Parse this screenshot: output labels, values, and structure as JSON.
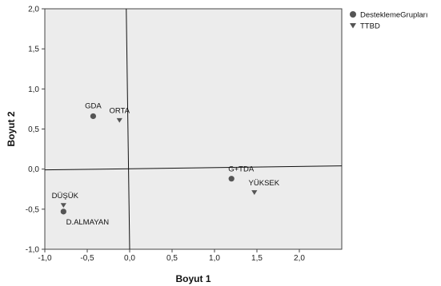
{
  "chart_data": {
    "type": "scatter",
    "xlabel": "Boyut 1",
    "ylabel": "Boyut 2",
    "xlim": [
      -1.0,
      2.5
    ],
    "ylim": [
      -1.0,
      2.0
    ],
    "xticks": [
      "-1,0",
      "-0,5",
      "0,0",
      "0,5",
      "1,0",
      "1,5",
      "2,0"
    ],
    "xtick_values": [
      -1.0,
      -0.5,
      0.0,
      0.5,
      1.0,
      1.5,
      2.0
    ],
    "yticks": [
      "2,0",
      "1,5",
      "1,0",
      "0,5",
      "0,0",
      "-0,5",
      "-1,0"
    ],
    "ytick_values": [
      2.0,
      1.5,
      1.0,
      0.5,
      0.0,
      -0.5,
      -1.0
    ],
    "grid": false,
    "legend_position": "top-right outside",
    "plot_background": "#ececec",
    "series": [
      {
        "name": "DesteklemeGrupları",
        "marker": "circle",
        "color": "#555555",
        "points": [
          {
            "label": "GDA",
            "x": -0.43,
            "y": 0.66
          },
          {
            "label": "G+TDA",
            "x": 1.2,
            "y": -0.12
          },
          {
            "label": "D.ALMAYAN",
            "x": -0.78,
            "y": -0.53
          }
        ]
      },
      {
        "name": "TTBD",
        "marker": "triangle-down",
        "color": "#555555",
        "points": [
          {
            "label": "ORTA",
            "x": -0.12,
            "y": 0.61
          },
          {
            "label": "YÜKSEK",
            "x": 1.47,
            "y": -0.29
          },
          {
            "label": "DÜŞÜK",
            "x": -0.78,
            "y": -0.45
          }
        ]
      }
    ]
  }
}
